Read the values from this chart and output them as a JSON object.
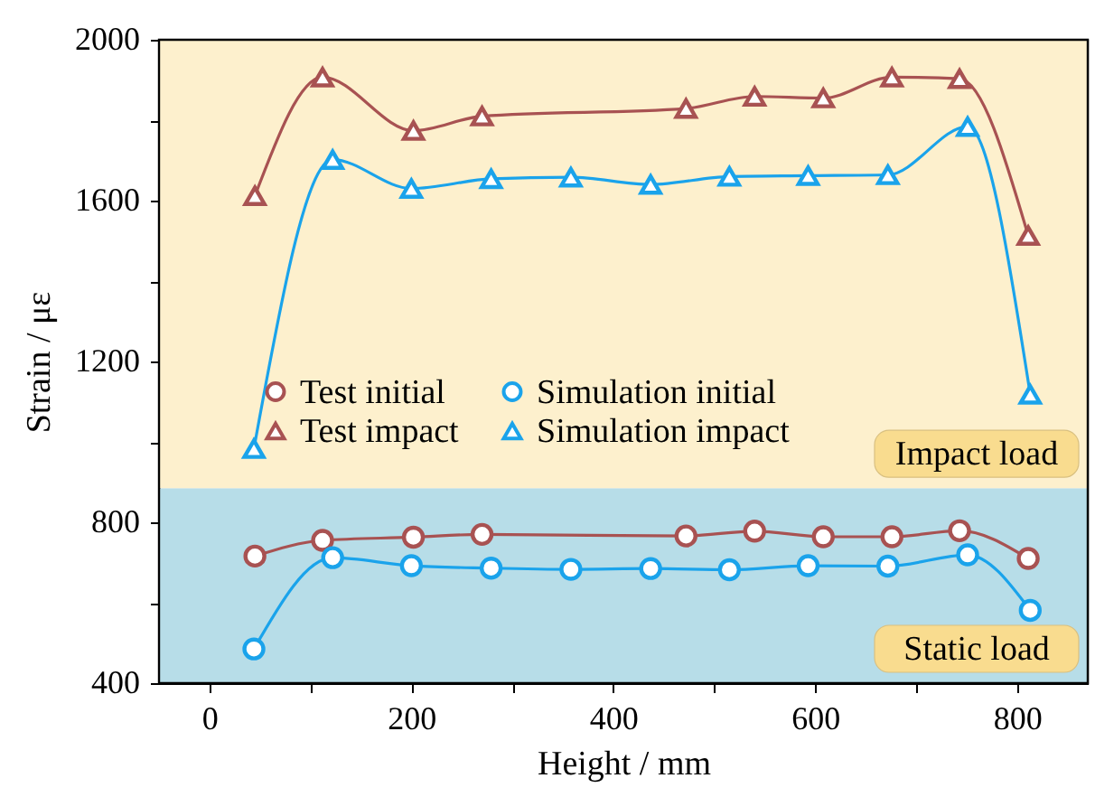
{
  "chart_data": {
    "type": "line",
    "xlabel": "Height / mm",
    "ylabel": "Strain / με",
    "xlim": [
      -50,
      870
    ],
    "xticks": [
      0,
      {
        "value": 100,
        "label": null
      },
      200,
      {
        "value": 300,
        "label": null
      },
      400,
      {
        "value": 500,
        "label": null
      },
      600,
      {
        "value": 700,
        "label": null
      },
      800
    ],
    "ylim": [
      400,
      2000
    ],
    "yticks": [
      400,
      {
        "value": 600,
        "label": null
      },
      800,
      {
        "value": 1000,
        "label": null
      },
      1200,
      {
        "value": 1400,
        "label": null
      },
      1600,
      {
        "value": 1800,
        "label": null
      },
      2000
    ],
    "grid": false,
    "legend": "left",
    "line_style": "solid",
    "bands": [
      {
        "axis": "y",
        "from": 400,
        "to": 885,
        "label": "Static load",
        "color": "#b7dde8"
      },
      {
        "axis": "y",
        "from": 885,
        "to": 2000,
        "label": "Impact load",
        "color": "#fdf0cd"
      }
    ],
    "series": [
      {
        "name": "Test initial",
        "color": "#a85252",
        "marker": "circle",
        "x": [
          45,
          112,
          202,
          270,
          472,
          540,
          608,
          676,
          743,
          811
        ],
        "values": [
          716,
          755,
          763,
          770,
          766,
          778,
          764,
          764,
          779,
          710
        ]
      },
      {
        "name": "Test impact",
        "color": "#a85252",
        "marker": "triangle",
        "x": [
          45,
          112,
          202,
          270,
          472,
          540,
          608,
          676,
          743,
          811
        ],
        "values": [
          1612,
          1907,
          1774,
          1810,
          1829,
          1859,
          1855,
          1907,
          1903,
          1513
        ]
      },
      {
        "name": "Simulation initial",
        "color": "#1aa3eb",
        "marker": "circle",
        "x": [
          44,
          122,
          200,
          279,
          358,
          437,
          515,
          593,
          672,
          751,
          813
        ],
        "values": [
          485,
          712,
          692,
          686,
          683,
          685,
          682,
          692,
          691,
          719,
          581
        ]
      },
      {
        "name": "Simulation impact",
        "color": "#1aa3eb",
        "marker": "triangle",
        "x": [
          44,
          122,
          200,
          279,
          358,
          437,
          515,
          593,
          672,
          751,
          813
        ],
        "values": [
          983,
          1702,
          1630,
          1654,
          1658,
          1640,
          1660,
          1662,
          1664,
          1784,
          1118
        ]
      }
    ]
  }
}
